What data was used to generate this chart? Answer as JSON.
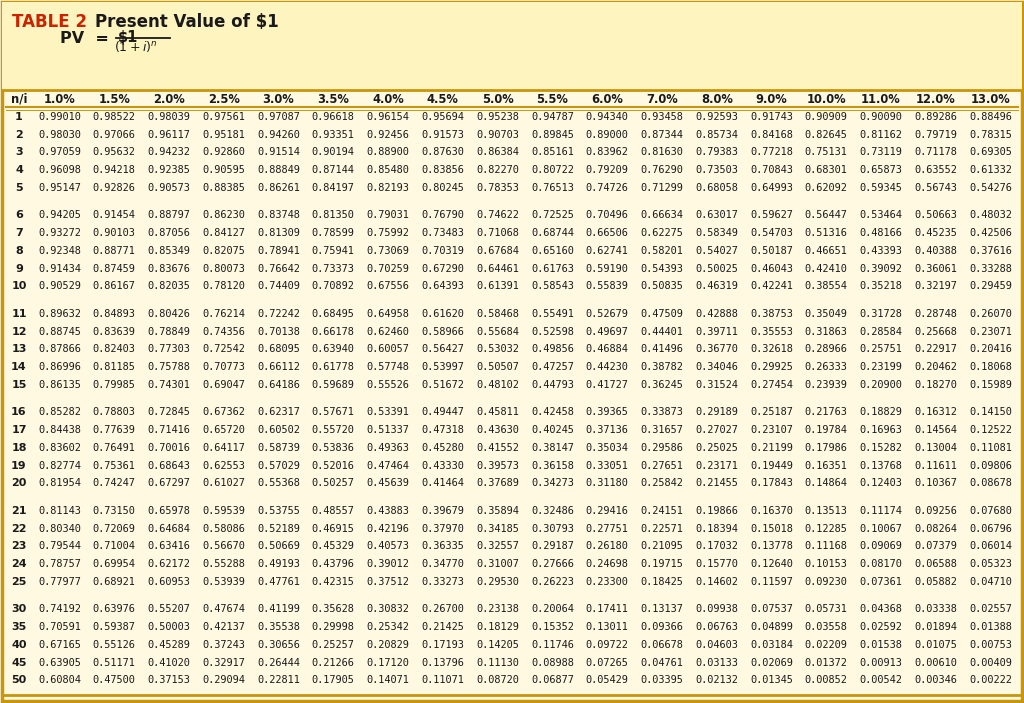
{
  "title": "TABLE 2",
  "subtitle": "Present Value of $1",
  "bg_color": "#FEF9E0",
  "border_color": "#C8960C",
  "title_color": "#CC2200",
  "text_color": "#1A1A1A",
  "col_headers": [
    "n/i",
    "1.0%",
    "1.5%",
    "2.0%",
    "2.5%",
    "3.0%",
    "3.5%",
    "4.0%",
    "4.5%",
    "5.0%",
    "5.5%",
    "6.0%",
    "7.0%",
    "8.0%",
    "9.0%",
    "10.0%",
    "11.0%",
    "12.0%",
    "13.0%"
  ],
  "row_labels": [
    1,
    2,
    3,
    4,
    5,
    6,
    7,
    8,
    9,
    10,
    11,
    12,
    13,
    14,
    15,
    16,
    17,
    18,
    19,
    20,
    21,
    22,
    23,
    24,
    25,
    30,
    35,
    40,
    45,
    50
  ],
  "data": [
    [
      0.9901,
      0.98522,
      0.98039,
      0.97561,
      0.97087,
      0.96618,
      0.96154,
      0.95694,
      0.95238,
      0.94787,
      0.9434,
      0.93458,
      0.92593,
      0.91743,
      0.90909,
      0.9009,
      0.89286,
      0.88496
    ],
    [
      0.9803,
      0.97066,
      0.96117,
      0.95181,
      0.9426,
      0.93351,
      0.92456,
      0.91573,
      0.90703,
      0.89845,
      0.89,
      0.87344,
      0.85734,
      0.84168,
      0.82645,
      0.81162,
      0.79719,
      0.78315
    ],
    [
      0.97059,
      0.95632,
      0.94232,
      0.9286,
      0.91514,
      0.90194,
      0.889,
      0.8763,
      0.86384,
      0.85161,
      0.83962,
      0.8163,
      0.79383,
      0.77218,
      0.75131,
      0.73119,
      0.71178,
      0.69305
    ],
    [
      0.96098,
      0.94218,
      0.92385,
      0.90595,
      0.88849,
      0.87144,
      0.8548,
      0.83856,
      0.8227,
      0.80722,
      0.79209,
      0.7629,
      0.73503,
      0.70843,
      0.68301,
      0.65873,
      0.63552,
      0.61332
    ],
    [
      0.95147,
      0.92826,
      0.90573,
      0.88385,
      0.86261,
      0.84197,
      0.82193,
      0.80245,
      0.78353,
      0.76513,
      0.74726,
      0.71299,
      0.68058,
      0.64993,
      0.62092,
      0.59345,
      0.56743,
      0.54276
    ],
    [
      0.94205,
      0.91454,
      0.88797,
      0.8623,
      0.83748,
      0.8135,
      0.79031,
      0.7679,
      0.74622,
      0.72525,
      0.70496,
      0.66634,
      0.63017,
      0.59627,
      0.56447,
      0.53464,
      0.50663,
      0.48032
    ],
    [
      0.93272,
      0.90103,
      0.87056,
      0.84127,
      0.81309,
      0.78599,
      0.75992,
      0.73483,
      0.71068,
      0.68744,
      0.66506,
      0.62275,
      0.58349,
      0.54703,
      0.51316,
      0.48166,
      0.45235,
      0.42506
    ],
    [
      0.92348,
      0.88771,
      0.85349,
      0.82075,
      0.78941,
      0.75941,
      0.73069,
      0.70319,
      0.67684,
      0.6516,
      0.62741,
      0.58201,
      0.54027,
      0.50187,
      0.46651,
      0.43393,
      0.40388,
      0.37616
    ],
    [
      0.91434,
      0.87459,
      0.83676,
      0.80073,
      0.76642,
      0.73373,
      0.70259,
      0.6729,
      0.64461,
      0.61763,
      0.5919,
      0.54393,
      0.50025,
      0.46043,
      0.4241,
      0.39092,
      0.36061,
      0.33288
    ],
    [
      0.90529,
      0.86167,
      0.82035,
      0.7812,
      0.74409,
      0.70892,
      0.67556,
      0.64393,
      0.61391,
      0.58543,
      0.55839,
      0.50835,
      0.46319,
      0.42241,
      0.38554,
      0.35218,
      0.32197,
      0.29459
    ],
    [
      0.89632,
      0.84893,
      0.80426,
      0.76214,
      0.72242,
      0.68495,
      0.64958,
      0.6162,
      0.58468,
      0.55491,
      0.52679,
      0.47509,
      0.42888,
      0.38753,
      0.35049,
      0.31728,
      0.28748,
      0.2607
    ],
    [
      0.88745,
      0.83639,
      0.78849,
      0.74356,
      0.70138,
      0.66178,
      0.6246,
      0.58966,
      0.55684,
      0.52598,
      0.49697,
      0.44401,
      0.39711,
      0.35553,
      0.31863,
      0.28584,
      0.25668,
      0.23071
    ],
    [
      0.87866,
      0.82403,
      0.77303,
      0.72542,
      0.68095,
      0.6394,
      0.60057,
      0.56427,
      0.53032,
      0.49856,
      0.46884,
      0.41496,
      0.3677,
      0.32618,
      0.28966,
      0.25751,
      0.22917,
      0.20416
    ],
    [
      0.86996,
      0.81185,
      0.75788,
      0.70773,
      0.66112,
      0.61778,
      0.57748,
      0.53997,
      0.50507,
      0.47257,
      0.4423,
      0.38782,
      0.34046,
      0.29925,
      0.26333,
      0.23199,
      0.20462,
      0.18068
    ],
    [
      0.86135,
      0.79985,
      0.74301,
      0.69047,
      0.64186,
      0.59689,
      0.55526,
      0.51672,
      0.48102,
      0.44793,
      0.41727,
      0.36245,
      0.31524,
      0.27454,
      0.23939,
      0.209,
      0.1827,
      0.15989
    ],
    [
      0.85282,
      0.78803,
      0.72845,
      0.67362,
      0.62317,
      0.57671,
      0.53391,
      0.49447,
      0.45811,
      0.42458,
      0.39365,
      0.33873,
      0.29189,
      0.25187,
      0.21763,
      0.18829,
      0.16312,
      0.1415
    ],
    [
      0.84438,
      0.77639,
      0.71416,
      0.6572,
      0.60502,
      0.5572,
      0.51337,
      0.47318,
      0.4363,
      0.40245,
      0.37136,
      0.31657,
      0.27027,
      0.23107,
      0.19784,
      0.16963,
      0.14564,
      0.12522
    ],
    [
      0.83602,
      0.76491,
      0.70016,
      0.64117,
      0.58739,
      0.53836,
      0.49363,
      0.4528,
      0.41552,
      0.38147,
      0.35034,
      0.29586,
      0.25025,
      0.21199,
      0.17986,
      0.15282,
      0.13004,
      0.11081
    ],
    [
      0.82774,
      0.75361,
      0.68643,
      0.62553,
      0.57029,
      0.52016,
      0.47464,
      0.4333,
      0.39573,
      0.36158,
      0.33051,
      0.27651,
      0.23171,
      0.19449,
      0.16351,
      0.13768,
      0.11611,
      0.09806
    ],
    [
      0.81954,
      0.74247,
      0.67297,
      0.61027,
      0.55368,
      0.50257,
      0.45639,
      0.41464,
      0.37689,
      0.34273,
      0.3118,
      0.25842,
      0.21455,
      0.17843,
      0.14864,
      0.12403,
      0.10367,
      0.08678
    ],
    [
      0.81143,
      0.7315,
      0.65978,
      0.59539,
      0.53755,
      0.48557,
      0.43883,
      0.39679,
      0.35894,
      0.32486,
      0.29416,
      0.24151,
      0.19866,
      0.1637,
      0.13513,
      0.11174,
      0.09256,
      0.0768
    ],
    [
      0.8034,
      0.72069,
      0.64684,
      0.58086,
      0.52189,
      0.46915,
      0.42196,
      0.3797,
      0.34185,
      0.30793,
      0.27751,
      0.22571,
      0.18394,
      0.15018,
      0.12285,
      0.10067,
      0.08264,
      0.06796
    ],
    [
      0.79544,
      0.71004,
      0.63416,
      0.5667,
      0.50669,
      0.45329,
      0.40573,
      0.36335,
      0.32557,
      0.29187,
      0.2618,
      0.21095,
      0.17032,
      0.13778,
      0.11168,
      0.09069,
      0.07379,
      0.06014
    ],
    [
      0.78757,
      0.69954,
      0.62172,
      0.55288,
      0.49193,
      0.43796,
      0.39012,
      0.3477,
      0.31007,
      0.27666,
      0.24698,
      0.19715,
      0.1577,
      0.1264,
      0.10153,
      0.0817,
      0.06588,
      0.05323
    ],
    [
      0.77977,
      0.68921,
      0.60953,
      0.53939,
      0.47761,
      0.42315,
      0.37512,
      0.33273,
      0.2953,
      0.26223,
      0.233,
      0.18425,
      0.14602,
      0.11597,
      0.0923,
      0.07361,
      0.05882,
      0.0471
    ],
    [
      0.74192,
      0.63976,
      0.55207,
      0.47674,
      0.41199,
      0.35628,
      0.30832,
      0.267,
      0.23138,
      0.20064,
      0.17411,
      0.13137,
      0.09938,
      0.07537,
      0.05731,
      0.04368,
      0.03338,
      0.02557
    ],
    [
      0.70591,
      0.59387,
      0.50003,
      0.42137,
      0.35538,
      0.29998,
      0.25342,
      0.21425,
      0.18129,
      0.15352,
      0.13011,
      0.09366,
      0.06763,
      0.04899,
      0.03558,
      0.02592,
      0.01894,
      0.01388
    ],
    [
      0.67165,
      0.55126,
      0.45289,
      0.37243,
      0.30656,
      0.25257,
      0.20829,
      0.17193,
      0.14205,
      0.11746,
      0.09722,
      0.06678,
      0.04603,
      0.03184,
      0.02209,
      0.01538,
      0.01075,
      0.00753
    ],
    [
      0.63905,
      0.51171,
      0.4102,
      0.32917,
      0.26444,
      0.21266,
      0.1712,
      0.13796,
      0.1113,
      0.08988,
      0.07265,
      0.04761,
      0.03133,
      0.02069,
      0.01372,
      0.00913,
      0.0061,
      0.00409
    ],
    [
      0.60804,
      0.475,
      0.37153,
      0.29094,
      0.22811,
      0.17905,
      0.14071,
      0.11071,
      0.0872,
      0.06877,
      0.05429,
      0.03395,
      0.02132,
      0.01345,
      0.00852,
      0.00542,
      0.00346,
      0.00222
    ]
  ]
}
